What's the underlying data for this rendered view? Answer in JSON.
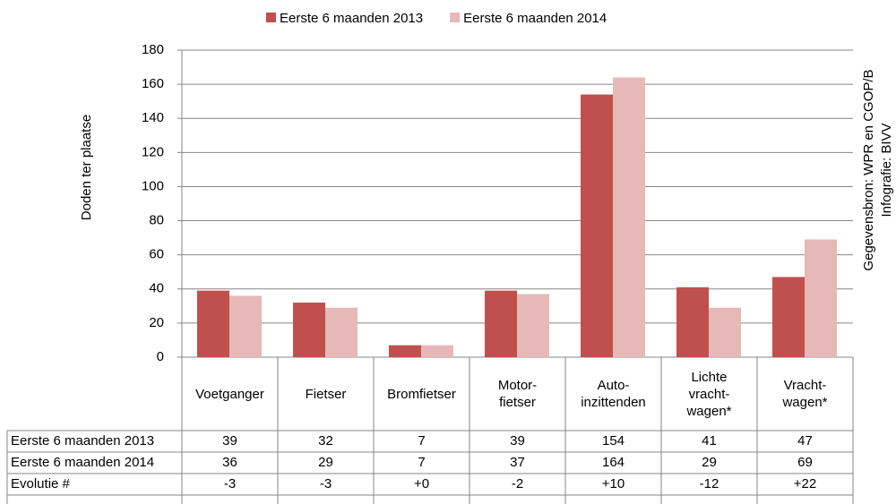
{
  "chart_data": {
    "type": "bar",
    "categories": [
      "Voetganger",
      "Fietser",
      "Bromfietser",
      "Motor-\nfietser",
      "Auto-\ninzittenden",
      "Lichte\nvracht-\nwagen*",
      "Vracht-\nwagen*"
    ],
    "series": [
      {
        "name": "Eerste 6 maanden 2013",
        "color": "#c0504d",
        "values": [
          39,
          32,
          7,
          39,
          154,
          41,
          47
        ]
      },
      {
        "name": "Eerste 6 maanden 2014",
        "color": "#e6b9b8",
        "values": [
          36,
          29,
          7,
          37,
          164,
          29,
          69
        ]
      }
    ],
    "ylabel": "Doden ter plaatse",
    "ylim": [
      0,
      180
    ],
    "yticks": [
      0,
      20,
      40,
      60,
      80,
      100,
      120,
      140,
      160,
      180
    ],
    "grid": true,
    "evolution": {
      "label": "Evolutie #",
      "values": [
        "-3",
        "-3",
        "+0",
        "-2",
        "+10",
        "-12",
        "+22"
      ]
    },
    "source": "Gegevensbron: WPR en CGOP/B",
    "credit": "Infografie: BIVV"
  }
}
